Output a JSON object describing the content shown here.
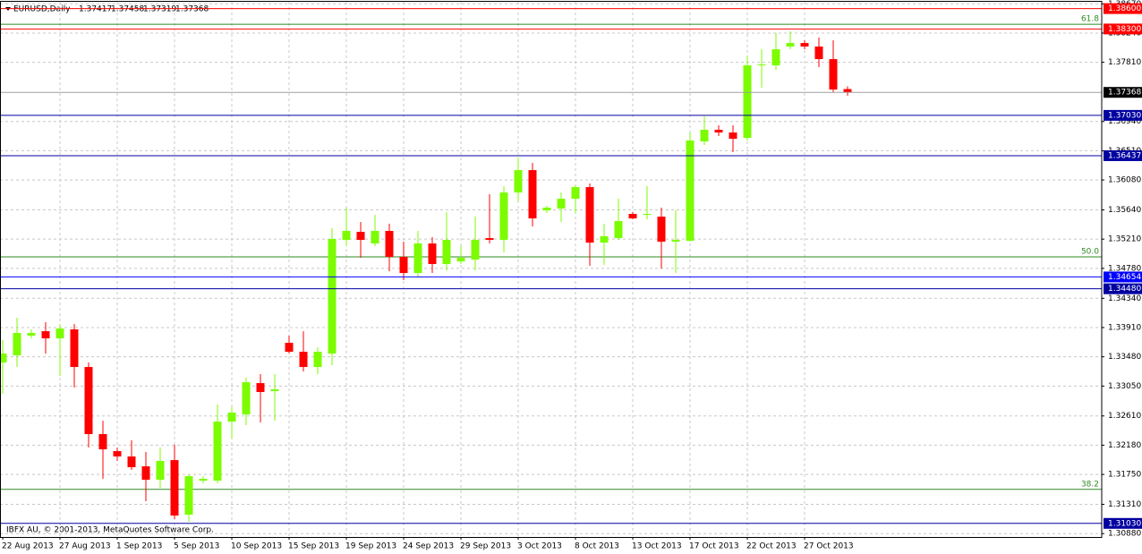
{
  "chart_data": {
    "type": "candlestick",
    "title": "EURUSD,Daily",
    "copyright": "IBFX AU, © 2001-2013, MetaQuotes Software Corp.",
    "categories": [
      "22 Aug 2013",
      null,
      null,
      null,
      "27 Aug 2013",
      null,
      null,
      null,
      "1 Sep 2013",
      null,
      null,
      null,
      "5 Sep 2013",
      null,
      null,
      null,
      "10 Sep 2013",
      null,
      null,
      null,
      "15 Sep 2013",
      null,
      null,
      null,
      "19 Sep 2013",
      null,
      null,
      null,
      "24 Sep 2013",
      null,
      null,
      null,
      "29 Sep 2013",
      null,
      null,
      null,
      "3 Oct 2013",
      null,
      null,
      null,
      "8 Oct 2013",
      null,
      null,
      null,
      "13 Oct 2013",
      null,
      null,
      null,
      "17 Oct 2013",
      null,
      null,
      null,
      "22 Oct 2013",
      null,
      null,
      null,
      "27 Oct 2013",
      null,
      null,
      null
    ],
    "open": [
      1.33396,
      1.33501,
      1.33791,
      1.33856,
      1.33751,
      1.33883,
      1.3333,
      1.32343,
      1.32093,
      1.32014,
      1.31869,
      1.31672,
      1.31961,
      1.31158,
      1.31659,
      1.31659,
      1.32527,
      1.32632,
      1.33093,
      1.32975,
      1.33685,
      1.33554,
      1.3333,
      1.33527,
      1.35199,
      1.35317,
      1.35146,
      1.35331,
      1.34949,
      1.34712,
      1.35146,
      1.34844,
      1.34883,
      1.34909,
      1.35225,
      1.35199,
      1.35896,
      1.36225,
      1.35633,
      1.3566,
      1.35804,
      1.35975,
      1.35159,
      1.35225,
      1.35581,
      1.35567,
      1.35541,
      1.35173,
      1.35186,
      1.36647,
      1.36818,
      1.36778,
      1.36699,
      1.37765,
      1.37765,
      1.38042,
      1.38094,
      1.38042,
      1.37857,
      1.37417
    ],
    "high": [
      1.33725,
      1.34054,
      1.33883,
      1.33988,
      1.33962,
      1.33962,
      1.33396,
      1.3254,
      1.32146,
      1.32251,
      1.3208,
      1.32146,
      1.32185,
      1.31751,
      1.31724,
      1.32777,
      1.32738,
      1.33172,
      1.33225,
      1.33225,
      1.33791,
      1.33856,
      1.3362,
      1.3537,
      1.35673,
      1.35462,
      1.35567,
      1.35436,
      1.35173,
      1.35331,
      1.35238,
      1.35607,
      1.35107,
      1.35541,
      1.3587,
      1.35989,
      1.3641,
      1.36331,
      1.35699,
      1.35896,
      1.36002,
      1.36028,
      1.35436,
      1.35804,
      1.35607,
      1.35989,
      1.35673,
      1.35633,
      1.36778,
      1.37015,
      1.36884,
      1.36884,
      1.3791,
      1.38002,
      1.38239,
      1.38265,
      1.38134,
      1.38173,
      1.38134,
      1.37458
    ],
    "low": [
      1.32935,
      1.3333,
      1.33751,
      1.33527,
      1.33198,
      1.33027,
      1.32146,
      1.31685,
      1.31948,
      1.31817,
      1.31356,
      1.31553,
      1.31093,
      1.31053,
      1.31619,
      1.31619,
      1.32277,
      1.32475,
      1.32514,
      1.3254,
      1.33527,
      1.33264,
      1.33225,
      1.33356,
      1.35107,
      1.34936,
      1.35107,
      1.34738,
      1.34607,
      1.34646,
      1.34712,
      1.34751,
      1.34844,
      1.34751,
      1.35146,
      1.35015,
      1.35765,
      1.35396,
      1.35594,
      1.35462,
      1.35594,
      1.34817,
      1.3483,
      1.35199,
      1.35502,
      1.35502,
      1.34778,
      1.34712,
      1.35173,
      1.36594,
      1.36726,
      1.36489,
      1.3666,
      1.37436,
      1.37699,
      1.38002,
      1.38002,
      1.37739,
      1.3737,
      1.37319
    ],
    "close": [
      1.33527,
      1.3383,
      1.3383,
      1.33751,
      1.33896,
      1.3333,
      1.32343,
      1.32119,
      1.32014,
      1.31856,
      1.31672,
      1.31948,
      1.31145,
      1.31724,
      1.31685,
      1.32527,
      1.32659,
      1.33106,
      1.32962,
      1.33001,
      1.33554,
      1.3333,
      1.33554,
      1.35212,
      1.35331,
      1.35199,
      1.35331,
      1.34949,
      1.34712,
      1.35146,
      1.34844,
      1.35199,
      1.34936,
      1.35199,
      1.35199,
      1.35896,
      1.36225,
      1.35515,
      1.35673,
      1.35804,
      1.35975,
      1.35159,
      1.35252,
      1.35475,
      1.35515,
      1.35581,
      1.35173,
      1.35199,
      1.3666,
      1.36818,
      1.36778,
      1.36686,
      1.37765,
      1.37778,
      1.38002,
      1.38094,
      1.38042,
      1.37857,
      1.3741,
      1.37368
    ],
    "up_color": "#7cfc00",
    "down_color": "#ff0000",
    "ylim": [
      1.3083,
      1.387
    ],
    "yticks": [
      {
        "value": 1.3867,
        "label": "1.38670"
      },
      {
        "value": 1.3824,
        "label": "1.38240"
      },
      {
        "value": 1.3781,
        "label": "1.37810"
      },
      {
        "value": 1.3694,
        "label": "1.36940"
      },
      {
        "value": 1.3651,
        "label": "1.36510"
      },
      {
        "value": 1.3608,
        "label": "1.36080"
      },
      {
        "value": 1.3564,
        "label": "1.35640"
      },
      {
        "value": 1.3521,
        "label": "1.35210"
      },
      {
        "value": 1.3478,
        "label": "1.34780"
      },
      {
        "value": 1.3434,
        "label": "1.34340"
      },
      {
        "value": 1.3391,
        "label": "1.33910"
      },
      {
        "value": 1.3348,
        "label": "1.33480"
      },
      {
        "value": 1.3305,
        "label": "1.33050"
      },
      {
        "value": 1.3261,
        "label": "1.32610"
      },
      {
        "value": 1.3218,
        "label": "1.32180"
      },
      {
        "value": 1.3175,
        "label": "1.31750"
      },
      {
        "value": 1.3131,
        "label": "1.31310"
      },
      {
        "value": 1.3088,
        "label": "1.30880"
      }
    ],
    "grid": true,
    "levels": [
      {
        "value": 1.386,
        "label": "1.38600",
        "color": "#ff0000"
      },
      {
        "value": 1.383,
        "label": "1.38300",
        "color": "#ff0000"
      },
      {
        "value": 1.3703,
        "label": "1.37030",
        "color": "#0000a0"
      },
      {
        "value": 1.36437,
        "label": "1.36437",
        "color": "#0000a0"
      },
      {
        "value": 1.34654,
        "label": "1.34654",
        "color": "#0000ff"
      },
      {
        "value": 1.3448,
        "label": "1.34480",
        "color": "#0000a0"
      },
      {
        "value": 1.3103,
        "label": "1.31030",
        "color": "#0000a0"
      }
    ],
    "fib_levels": [
      {
        "value": 1.3837,
        "label": "61.8",
        "color": "#2e8b22"
      },
      {
        "value": 1.3495,
        "label": "50.0",
        "color": "#2e8b22"
      },
      {
        "value": 1.3153,
        "label": "38.2",
        "color": "#2e8b22"
      }
    ]
  }
}
